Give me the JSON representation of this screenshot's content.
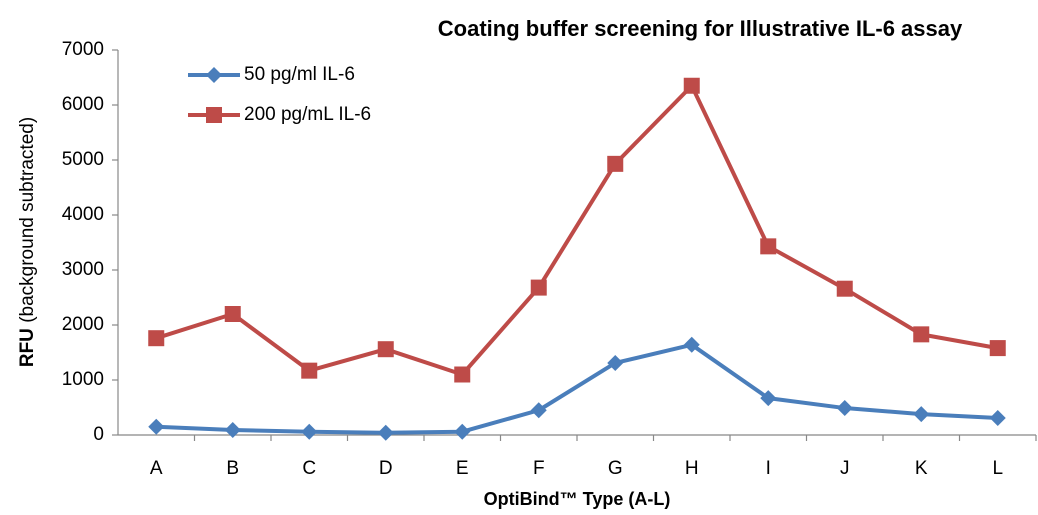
{
  "chart_data": {
    "type": "line",
    "title": "Coating buffer screening for Illustrative IL-6 assay",
    "xlabel": "OptiBind™ Type (A-L)",
    "ylabel": [
      "RFU",
      "(background subtracted)"
    ],
    "categories": [
      "A",
      "B",
      "C",
      "D",
      "E",
      "F",
      "G",
      "H",
      "I",
      "J",
      "K",
      "L"
    ],
    "series": [
      {
        "name": "50 pg/ml IL-6",
        "color": "#4a7ebb",
        "marker": "diamond",
        "values": [
          150,
          90,
          60,
          40,
          60,
          450,
          1310,
          1640,
          670,
          490,
          380,
          310
        ]
      },
      {
        "name": "200 pg/mL IL-6",
        "color": "#be4b48",
        "marker": "square",
        "values": [
          1760,
          2200,
          1170,
          1560,
          1100,
          2680,
          4930,
          6350,
          3430,
          2660,
          1830,
          1580
        ]
      }
    ],
    "ylim": [
      0,
      7000
    ],
    "yticks": [
      0,
      1000,
      2000,
      3000,
      4000,
      5000,
      6000,
      7000
    ],
    "grid": false,
    "legend": "top-left"
  }
}
